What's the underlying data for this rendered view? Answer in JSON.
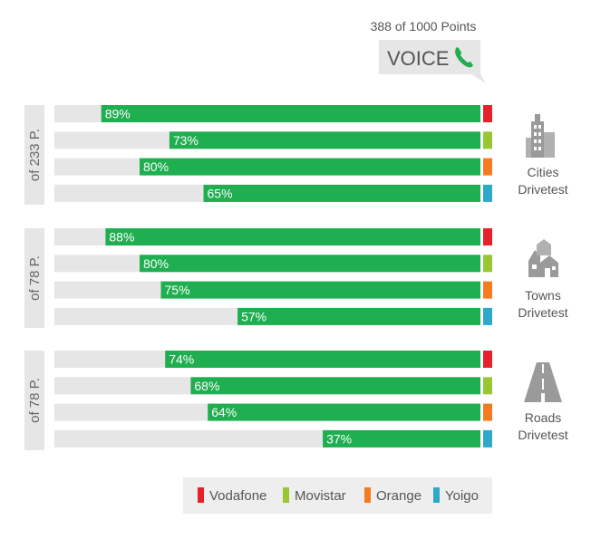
{
  "header": {
    "points_text": "388 of 1000 Points",
    "category": "VOICE",
    "icon": "phone-icon"
  },
  "colors": {
    "bar_fill": "#1fae50",
    "bar_track": "#e6e6e6",
    "side_tab": "#e6e6e6",
    "icon_gray": "#9a9a9a",
    "legend_bg": "#eeeeee"
  },
  "legend": [
    {
      "name": "Vodafone",
      "color": "#e8202a"
    },
    {
      "name": "Movistar",
      "color": "#99c633"
    },
    {
      "name": "Orange",
      "color": "#f47b20"
    },
    {
      "name": "Yoigo",
      "color": "#2ea9c9"
    }
  ],
  "chart_data": {
    "type": "bar",
    "orientation": "horizontal",
    "value_unit": "%",
    "xlim": [
      0,
      100
    ],
    "series_names": [
      "Vodafone",
      "Movistar",
      "Orange",
      "Yoigo"
    ],
    "groups": [
      {
        "side_label": "of 233 P.",
        "caption_line1": "Cities",
        "caption_line2": "Drivetest",
        "icon": "city-buildings-icon",
        "values": [
          89,
          73,
          80,
          65
        ]
      },
      {
        "side_label": "of 78 P.",
        "caption_line1": "Towns",
        "caption_line2": "Drivetest",
        "icon": "town-houses-icon",
        "values": [
          88,
          80,
          75,
          57
        ]
      },
      {
        "side_label": "of 78 P.",
        "caption_line1": "Roads",
        "caption_line2": "Drivetest",
        "icon": "road-icon",
        "values": [
          74,
          68,
          64,
          37
        ]
      }
    ]
  }
}
